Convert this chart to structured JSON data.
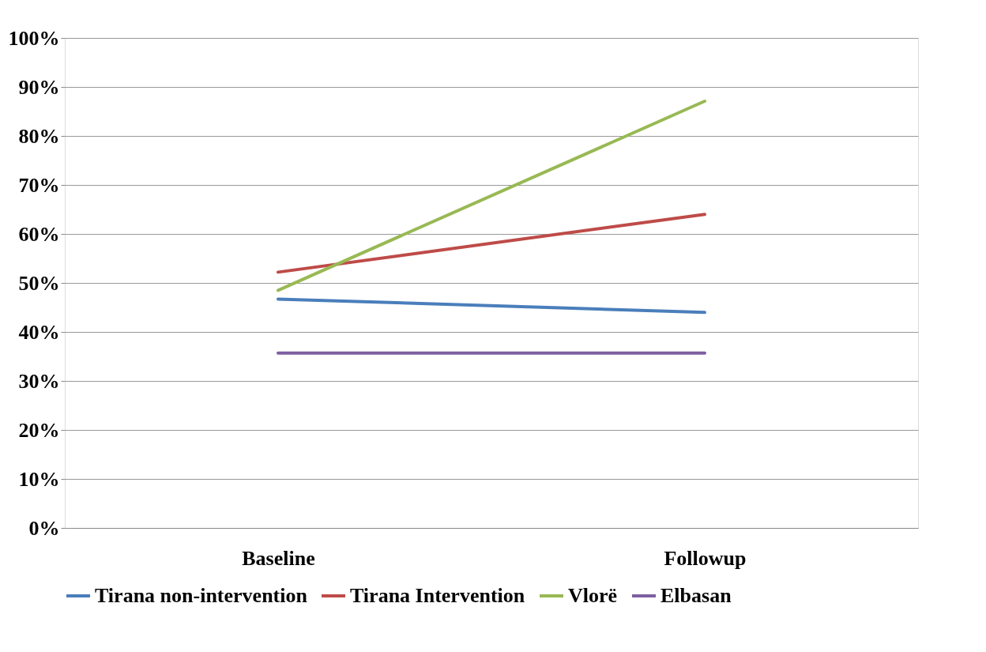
{
  "chart_data": {
    "type": "line",
    "categories": [
      "Baseline",
      "Followup"
    ],
    "series": [
      {
        "name": "Tirana non-intervention",
        "color": "#4a7ebb",
        "values": [
          46.7,
          44.0
        ]
      },
      {
        "name": "Tirana Intervention",
        "color": "#be4b48",
        "values": [
          52.2,
          64.0
        ]
      },
      {
        "name": "Vlorë",
        "color": "#98b954",
        "values": [
          48.5,
          87.1
        ]
      },
      {
        "name": "Elbasan",
        "color": "#7d5fa0",
        "values": [
          35.7,
          35.7
        ]
      }
    ],
    "ylim": [
      0,
      100
    ],
    "yticks": [
      {
        "value": 0,
        "label": "0%"
      },
      {
        "value": 10,
        "label": "10%"
      },
      {
        "value": 20,
        "label": "20%"
      },
      {
        "value": 30,
        "label": "30%"
      },
      {
        "value": 40,
        "label": "40%"
      },
      {
        "value": 50,
        "label": "50%"
      },
      {
        "value": 60,
        "label": "60%"
      },
      {
        "value": 70,
        "label": "70%"
      },
      {
        "value": 80,
        "label": "80%"
      },
      {
        "value": 90,
        "label": "90%"
      },
      {
        "value": 100,
        "label": "100%"
      }
    ],
    "grid": "y",
    "legend": "bottom",
    "marker": "none",
    "line_style": "solid"
  }
}
